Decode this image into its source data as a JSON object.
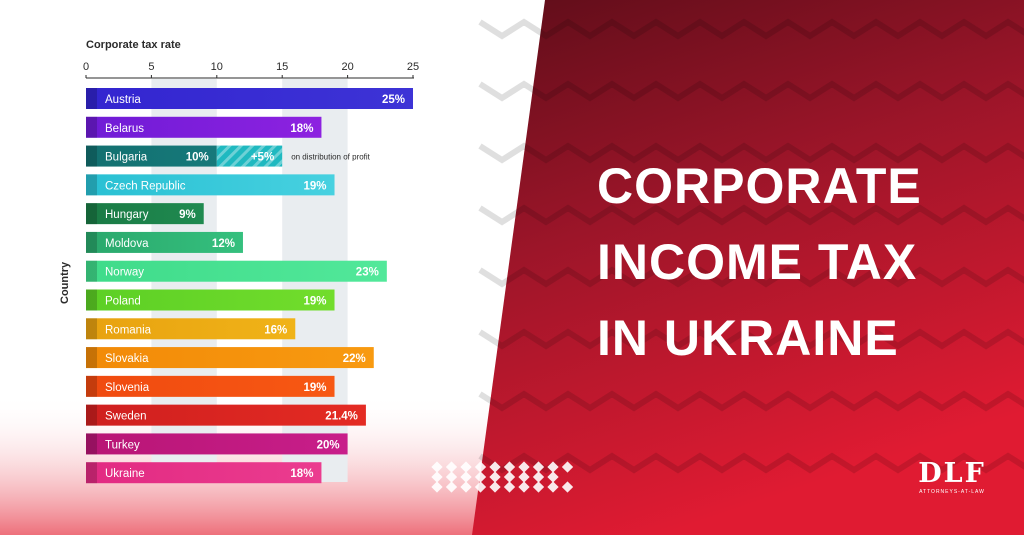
{
  "headline": [
    "CORPORATE",
    "INCOME TAX",
    "IN UKRAINE"
  ],
  "logo": {
    "mark": "DLF",
    "sub": "ATTORNEYS-AT-LAW"
  },
  "chart_data": {
    "type": "bar",
    "orientation": "horizontal",
    "title": "Corporate tax rate",
    "ylabel": "Country",
    "xlim": [
      0,
      25
    ],
    "xticks": [
      0,
      5,
      10,
      15,
      20,
      25
    ],
    "grid": "alternating vertical bands",
    "categories": [
      "Austria",
      "Belarus",
      "Bulgaria",
      "Czech Republic",
      "Hungary",
      "Moldova",
      "Norway",
      "Poland",
      "Romania",
      "Slovakia",
      "Slovenia",
      "Sweden",
      "Turkey",
      "Ukraine"
    ],
    "values": [
      25,
      18,
      10,
      19,
      9,
      12,
      23,
      19,
      16,
      22,
      19,
      21.4,
      20,
      18
    ],
    "labels": [
      "25%",
      "18%",
      "10%",
      "19%",
      "9%",
      "12%",
      "23%",
      "19%",
      "16%",
      "22%",
      "19%",
      "21.4%",
      "20%",
      "18%"
    ],
    "colors": [
      "#3d33d6",
      "#8d22e0",
      "#16797a",
      "#47d1e0",
      "#1f8a50",
      "#35c07e",
      "#52e89a",
      "#72dd2c",
      "#f0b318",
      "#f89a10",
      "#f75813",
      "#e42b23",
      "#c81e8a",
      "#eb3c8f"
    ],
    "gradient_starts": [
      "#3325d0",
      "#6f1bd6",
      "#137070",
      "#29c0d3",
      "#1a7a45",
      "#2aa86c",
      "#3fdb8a",
      "#5ccf25",
      "#e8a210",
      "#f28a08",
      "#f04a10",
      "#cf1f1f",
      "#b81575",
      "#e22a82"
    ],
    "extra_segment": {
      "category": "Bulgaria",
      "value": 5,
      "label": "+5%",
      "note": "on distribution of profit",
      "color": "#1fb9c0"
    }
  },
  "colors": {
    "red_dark": "#5e0d19",
    "red_mid": "#9c1529",
    "red_bright": "#e01b32",
    "chart_text": "#2b2b2b",
    "band": "#e9edf0",
    "dots": "#ffffff"
  }
}
